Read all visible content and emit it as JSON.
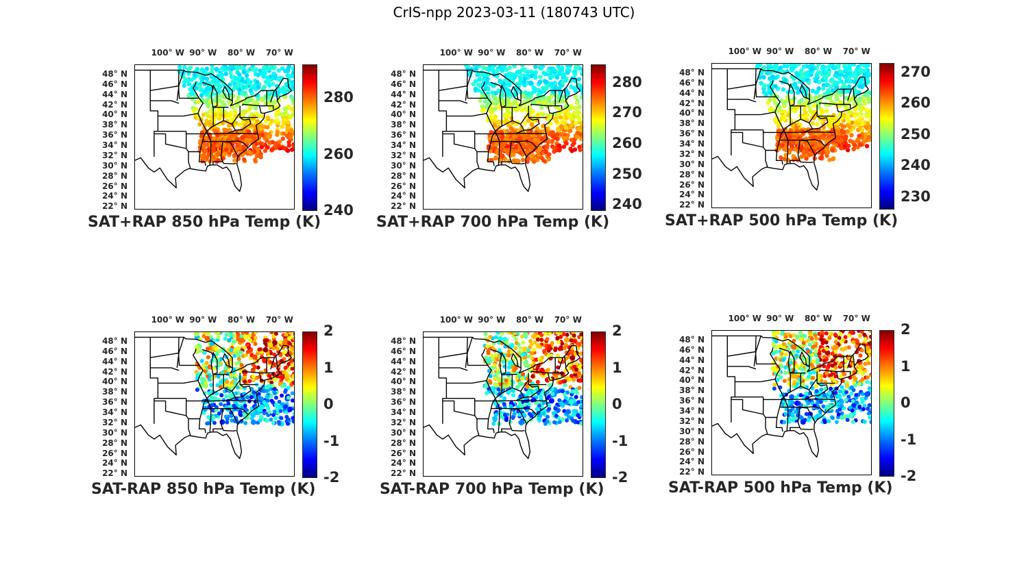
{
  "title": "CrIS-npp 2023-03-11 (180743 UTC)",
  "lon_labels": [
    "100° W",
    "90° W",
    "80° W",
    "70° W"
  ],
  "lat_labels": [
    "48° N",
    "46° N",
    "44° N",
    "42° N",
    "40° N",
    "38° N",
    "36° N",
    "34° N",
    "32° N",
    "30° N",
    "28° N",
    "26° N",
    "24° N",
    "22° N"
  ],
  "panels": [
    {
      "title": "SAT+RAP 850 hPa Temp (K)",
      "kind": "temp",
      "clim": [
        240,
        292
      ],
      "ticks": [
        "280",
        "260",
        "240"
      ]
    },
    {
      "title": "SAT+RAP 700 hPa Temp (K)",
      "kind": "temp",
      "clim": [
        238,
        286
      ],
      "ticks": [
        "280",
        "270",
        "260",
        "250",
        "240"
      ]
    },
    {
      "title": "SAT+RAP 500 hPa Temp (K)",
      "kind": "temp",
      "clim": [
        226,
        273
      ],
      "ticks": [
        "270",
        "260",
        "250",
        "240",
        "230"
      ]
    },
    {
      "title": "SAT-RAP 850 hPa Temp (K)",
      "kind": "diff",
      "clim": [
        -2,
        2
      ],
      "ticks": [
        "2",
        "1",
        "0",
        "-1",
        "-2"
      ]
    },
    {
      "title": "SAT-RAP 700 hPa Temp (K)",
      "kind": "diff",
      "clim": [
        -2,
        2
      ],
      "ticks": [
        "2",
        "1",
        "0",
        "-1",
        "-2"
      ]
    },
    {
      "title": "SAT-RAP 500 hPa Temp (K)",
      "kind": "diff",
      "clim": [
        -2,
        2
      ],
      "ticks": [
        "2",
        "1",
        "0",
        "-1",
        "-2"
      ]
    }
  ],
  "colormap": "jet"
}
